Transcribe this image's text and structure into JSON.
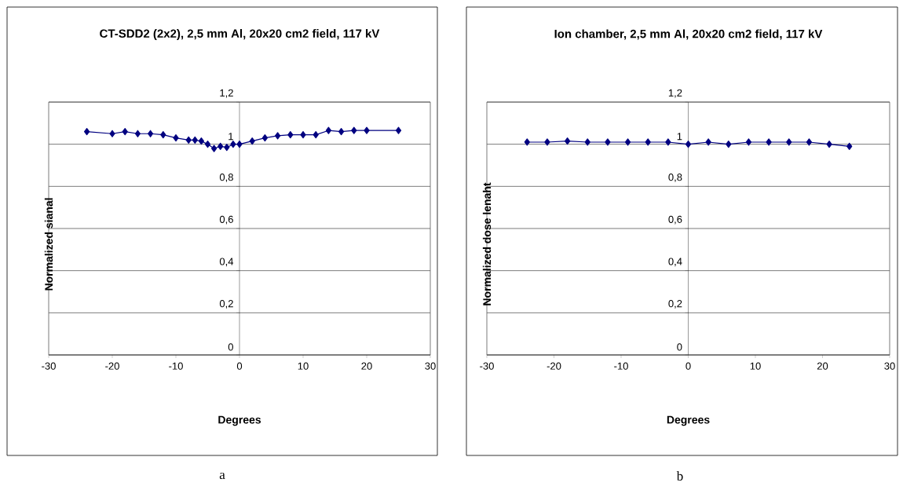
{
  "chart_data": [
    {
      "type": "line",
      "title": "CT-SDD2 (2x2), 2,5 mm Al, 20x20 cm2 field, 117 kV",
      "xlabel": "Degrees",
      "ylabel": "Normalized sianal",
      "x": [
        -24,
        -20,
        -18,
        -16,
        -14,
        -12,
        -10,
        -8,
        -7,
        -6,
        -5,
        -4,
        -3,
        -2,
        -1,
        0,
        2,
        4,
        6,
        8,
        10,
        12,
        14,
        16,
        18,
        20,
        25
      ],
      "series": [
        {
          "color": "#000080",
          "values": [
            1.06,
            1.05,
            1.06,
            1.05,
            1.05,
            1.045,
            1.03,
            1.02,
            1.02,
            1.015,
            1.0,
            0.98,
            0.99,
            0.985,
            1.0,
            1.0,
            1.015,
            1.03,
            1.04,
            1.045,
            1.045,
            1.045,
            1.065,
            1.06,
            1.065,
            1.065,
            1.065
          ]
        }
      ],
      "xlim": [
        -30,
        30
      ],
      "ylim": [
        0,
        1.2
      ],
      "xticks": [
        -30,
        -20,
        -10,
        0,
        10,
        20,
        30
      ],
      "yticks": [
        0,
        {
          "value": 0.2,
          "label": "0,2"
        },
        {
          "value": 0.4,
          "label": "0,4"
        },
        {
          "value": 0.6,
          "label": "0,6"
        },
        {
          "value": 0.8,
          "label": "0,8"
        },
        1,
        {
          "value": 1.2,
          "label": "1,2"
        }
      ],
      "grid": "y",
      "marker": "diamond",
      "line_style": "solid",
      "annotations": [
        "a"
      ]
    },
    {
      "type": "line",
      "title": "Ion chamber, 2,5 mm Al, 20x20 cm2 field, 117 kV",
      "xlabel": "Degrees",
      "ylabel": "Normalized dose lenaht",
      "x": [
        -24,
        -21,
        -18,
        -15,
        -12,
        -9,
        -6,
        -3,
        0,
        3,
        6,
        9,
        12,
        15,
        18,
        21,
        24
      ],
      "series": [
        {
          "color": "#000080",
          "values": [
            1.01,
            1.01,
            1.015,
            1.01,
            1.01,
            1.01,
            1.01,
            1.01,
            1.0,
            1.01,
            1.0,
            1.01,
            1.01,
            1.01,
            1.01,
            1.0,
            0.99
          ]
        }
      ],
      "xlim": [
        -30,
        30
      ],
      "ylim": [
        0,
        1.2
      ],
      "xticks": [
        -30,
        -20,
        -10,
        0,
        10,
        20,
        30
      ],
      "yticks": [
        0,
        {
          "value": 0.2,
          "label": "0,2"
        },
        {
          "value": 0.4,
          "label": "0,4"
        },
        {
          "value": 0.6,
          "label": "0,6"
        },
        {
          "value": 0.8,
          "label": "0,8"
        },
        1,
        {
          "value": 1.2,
          "label": "1,2"
        }
      ],
      "grid": "y",
      "marker": "diamond",
      "line_style": "solid",
      "annotations": [
        "b"
      ]
    }
  ]
}
